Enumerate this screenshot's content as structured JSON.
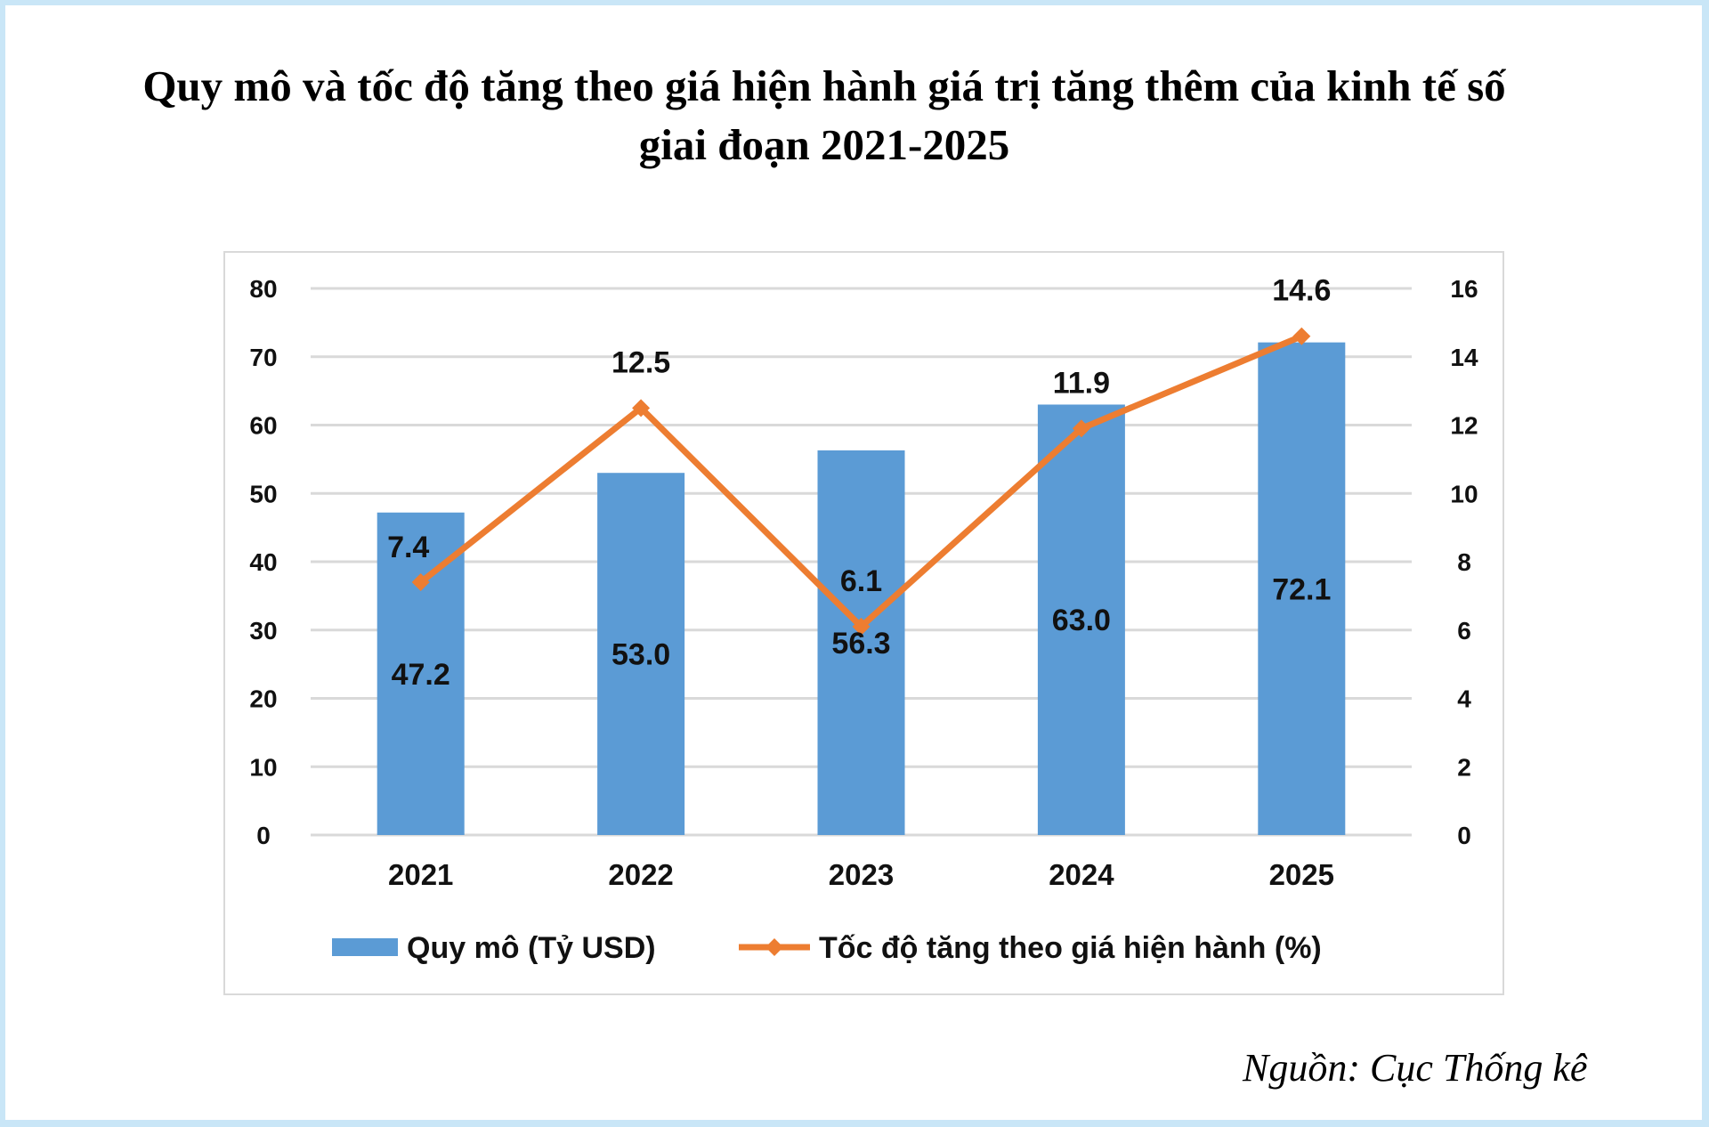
{
  "chart_data": {
    "type": "bar+line",
    "title": "Quy mô và tốc độ tăng theo giá hiện hành giá trị tăng thêm của kinh tế số giai đoạn 2021-2025",
    "title_lines": [
      "Quy mô và tốc độ tăng theo giá hiện hành giá trị tăng thêm của kinh tế số",
      "giai đoạn 2021-2025"
    ],
    "categories": [
      "2021",
      "2022",
      "2023",
      "2024",
      "2025"
    ],
    "series": [
      {
        "name": "Quy mô (Tỷ USD)",
        "type": "bar",
        "axis": "left",
        "values": [
          47.2,
          53.0,
          56.3,
          63.0,
          72.1
        ],
        "labels": [
          "47.2",
          "53.0",
          "56.3",
          "63.0",
          "72.1"
        ],
        "color": "#5b9bd5"
      },
      {
        "name": "Tốc độ tăng theo giá hiện hành (%)",
        "type": "line",
        "axis": "right",
        "values": [
          7.4,
          12.5,
          6.1,
          11.9,
          14.6
        ],
        "labels": [
          "7.4",
          "12.5",
          "6.1",
          "11.9",
          "14.6"
        ],
        "color": "#ed7d31"
      }
    ],
    "y_left": {
      "lim": [
        0,
        80
      ],
      "ticks": [
        "0",
        "10",
        "20",
        "30",
        "40",
        "50",
        "60",
        "70",
        "80"
      ]
    },
    "y_right": {
      "lim": [
        0,
        16
      ],
      "ticks": [
        "0",
        "2",
        "4",
        "6",
        "8",
        "10",
        "12",
        "14",
        "16"
      ]
    },
    "grid": true,
    "legend_placement": "bottom"
  },
  "source": "Nguồn: Cục Thống kê"
}
